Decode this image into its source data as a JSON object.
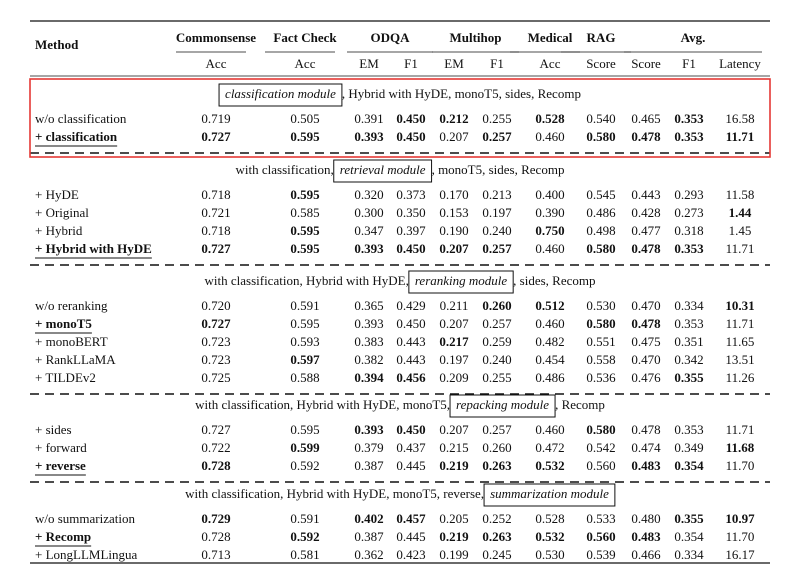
{
  "table": {
    "method_label": "Method",
    "groups": [
      {
        "label": "Commonsense",
        "metrics": [
          "Acc"
        ]
      },
      {
        "label": "Fact Check",
        "metrics": [
          "Acc"
        ]
      },
      {
        "label": "ODQA",
        "metrics": [
          "EM",
          "F1"
        ]
      },
      {
        "label": "Multihop",
        "metrics": [
          "EM",
          "F1"
        ]
      },
      {
        "label": "Medical",
        "metrics": [
          "Acc"
        ]
      },
      {
        "label": "RAG",
        "metrics": [
          "Score"
        ]
      },
      {
        "label": "Avg.",
        "metrics": [
          "Score",
          "F1",
          "Latency"
        ]
      }
    ],
    "sections": [
      {
        "caption": [
          {
            "text": "classification module",
            "boxed": true
          },
          {
            "text": ", Hybrid with HyDE, monoT5, sides, Recomp"
          }
        ],
        "highlighted": true,
        "rows": [
          {
            "cells": [
              "w/o classification",
              "0.719",
              "0.505",
              "0.391",
              "0.450",
              "0.212",
              "0.255",
              "0.528",
              "0.540",
              "0.465",
              "0.353",
              "16.58"
            ],
            "bold": [
              4,
              5,
              7,
              10
            ]
          },
          {
            "cells": [
              "+ classification",
              "0.727",
              "0.595",
              "0.393",
              "0.450",
              "0.207",
              "0.257",
              "0.460",
              "0.580",
              "0.478",
              "0.353",
              "11.71"
            ],
            "bold": [
              0,
              1,
              2,
              3,
              4,
              6,
              8,
              9,
              10,
              11
            ],
            "underline": true
          }
        ]
      },
      {
        "caption": [
          {
            "text": "with classification, "
          },
          {
            "text": "retrieval module",
            "boxed": true
          },
          {
            "text": ", monoT5, sides, Recomp"
          }
        ],
        "rows": [
          {
            "cells": [
              "+ HyDE",
              "0.718",
              "0.595",
              "0.320",
              "0.373",
              "0.170",
              "0.213",
              "0.400",
              "0.545",
              "0.443",
              "0.293",
              "11.58"
            ],
            "bold": [
              2
            ]
          },
          {
            "cells": [
              "+ Original",
              "0.721",
              "0.585",
              "0.300",
              "0.350",
              "0.153",
              "0.197",
              "0.390",
              "0.486",
              "0.428",
              "0.273",
              "1.44"
            ],
            "bold": [
              11
            ]
          },
          {
            "cells": [
              "+ Hybrid",
              "0.718",
              "0.595",
              "0.347",
              "0.397",
              "0.190",
              "0.240",
              "0.750",
              "0.498",
              "0.477",
              "0.318",
              "1.45"
            ],
            "bold": [
              2,
              7
            ]
          },
          {
            "cells": [
              "+ Hybrid with HyDE",
              "0.727",
              "0.595",
              "0.393",
              "0.450",
              "0.207",
              "0.257",
              "0.460",
              "0.580",
              "0.478",
              "0.353",
              "11.71"
            ],
            "bold": [
              0,
              1,
              2,
              3,
              4,
              5,
              6,
              8,
              9,
              10
            ],
            "underline": true
          }
        ]
      },
      {
        "caption": [
          {
            "text": "with classification, Hybrid with HyDE, "
          },
          {
            "text": "reranking module",
            "boxed": true
          },
          {
            "text": ", sides, Recomp"
          }
        ],
        "rows": [
          {
            "cells": [
              "w/o reranking",
              "0.720",
              "0.591",
              "0.365",
              "0.429",
              "0.211",
              "0.260",
              "0.512",
              "0.530",
              "0.470",
              "0.334",
              "10.31"
            ],
            "bold": [
              6,
              7,
              11
            ]
          },
          {
            "cells": [
              "+ monoT5",
              "0.727",
              "0.595",
              "0.393",
              "0.450",
              "0.207",
              "0.257",
              "0.460",
              "0.580",
              "0.478",
              "0.353",
              "11.71"
            ],
            "bold": [
              0,
              1,
              8,
              9
            ],
            "underline": true
          },
          {
            "cells": [
              "+ monoBERT",
              "0.723",
              "0.593",
              "0.383",
              "0.443",
              "0.217",
              "0.259",
              "0.482",
              "0.551",
              "0.475",
              "0.351",
              "11.65"
            ],
            "bold": [
              5
            ]
          },
          {
            "cells": [
              "+ RankLLaMA",
              "0.723",
              "0.597",
              "0.382",
              "0.443",
              "0.197",
              "0.240",
              "0.454",
              "0.558",
              "0.470",
              "0.342",
              "13.51"
            ],
            "bold": [
              2
            ]
          },
          {
            "cells": [
              "+ TILDEv2",
              "0.725",
              "0.588",
              "0.394",
              "0.456",
              "0.209",
              "0.255",
              "0.486",
              "0.536",
              "0.476",
              "0.355",
              "11.26"
            ],
            "bold": [
              3,
              4,
              10
            ]
          }
        ]
      },
      {
        "caption": [
          {
            "text": "with classification, Hybrid with HyDE, monoT5, "
          },
          {
            "text": "repacking module",
            "boxed": true
          },
          {
            "text": ", Recomp"
          }
        ],
        "rows": [
          {
            "cells": [
              "+ sides",
              "0.727",
              "0.595",
              "0.393",
              "0.450",
              "0.207",
              "0.257",
              "0.460",
              "0.580",
              "0.478",
              "0.353",
              "11.71"
            ],
            "bold": [
              3,
              4,
              8
            ]
          },
          {
            "cells": [
              "+ forward",
              "0.722",
              "0.599",
              "0.379",
              "0.437",
              "0.215",
              "0.260",
              "0.472",
              "0.542",
              "0.474",
              "0.349",
              "11.68"
            ],
            "bold": [
              2,
              11
            ]
          },
          {
            "cells": [
              "+ reverse",
              "0.728",
              "0.592",
              "0.387",
              "0.445",
              "0.219",
              "0.263",
              "0.532",
              "0.560",
              "0.483",
              "0.354",
              "11.70"
            ],
            "bold": [
              0,
              1,
              5,
              6,
              7,
              9,
              10
            ],
            "underline": true
          }
        ]
      },
      {
        "caption": [
          {
            "text": "with classification, Hybrid with HyDE, monoT5, reverse, "
          },
          {
            "text": "summarization module",
            "boxed": true
          }
        ],
        "rows": [
          {
            "cells": [
              "w/o summarization",
              "0.729",
              "0.591",
              "0.402",
              "0.457",
              "0.205",
              "0.252",
              "0.528",
              "0.533",
              "0.480",
              "0.355",
              "10.97"
            ],
            "bold": [
              1,
              3,
              4,
              10,
              11
            ]
          },
          {
            "cells": [
              "+ Recomp",
              "0.728",
              "0.592",
              "0.387",
              "0.445",
              "0.219",
              "0.263",
              "0.532",
              "0.560",
              "0.483",
              "0.354",
              "11.70"
            ],
            "bold": [
              0,
              2,
              5,
              6,
              7,
              8,
              9
            ],
            "underline": true
          },
          {
            "cells": [
              "+ LongLLMLingua",
              "0.713",
              "0.581",
              "0.362",
              "0.423",
              "0.199",
              "0.245",
              "0.530",
              "0.539",
              "0.466",
              "0.334",
              "16.17"
            ],
            "bold": []
          }
        ]
      }
    ]
  }
}
